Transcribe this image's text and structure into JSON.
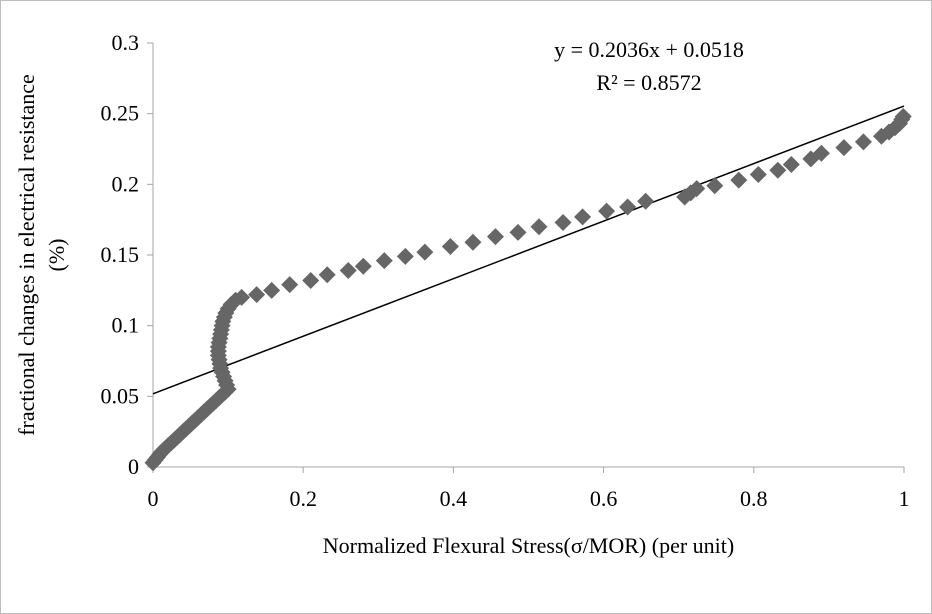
{
  "chart_data": {
    "type": "scatter",
    "title": "",
    "xlabel": "Normalized Flexural Stress(σ/MOR) (per unit)",
    "ylabel_lines": [
      "fractional changes in electrical resistance",
      "(%)"
    ],
    "xlim": [
      0,
      1
    ],
    "ylim": [
      0,
      0.3
    ],
    "x_ticks": [
      0,
      0.2,
      0.4,
      0.6,
      0.8,
      1
    ],
    "x_tick_labels": [
      "0",
      "0.2",
      "0.4",
      "0.6",
      "0.8",
      "1"
    ],
    "y_ticks": [
      0,
      0.05,
      0.1,
      0.15,
      0.2,
      0.25,
      0.3
    ],
    "y_tick_labels": [
      "0",
      "0.05",
      "0.1",
      "0.15",
      "0.2",
      "0.25",
      "0.3"
    ],
    "grid": false,
    "legend": "none",
    "marker": "diamond",
    "marker_color": "#666666",
    "trendline": {
      "type": "linear",
      "slope": 0.2036,
      "intercept": 0.0518,
      "color": "#000000",
      "equation_text": "y = 0.2036x + 0.0518",
      "r2_text": "R² = 0.8572"
    },
    "points": [
      [
        0.0,
        0.003
      ],
      [
        0.003,
        0.005
      ],
      [
        0.006,
        0.007
      ],
      [
        0.009,
        0.009
      ],
      [
        0.012,
        0.011
      ],
      [
        0.016,
        0.013
      ],
      [
        0.02,
        0.015
      ],
      [
        0.024,
        0.017
      ],
      [
        0.028,
        0.019
      ],
      [
        0.032,
        0.021
      ],
      [
        0.036,
        0.023
      ],
      [
        0.04,
        0.025
      ],
      [
        0.044,
        0.027
      ],
      [
        0.048,
        0.029
      ],
      [
        0.052,
        0.031
      ],
      [
        0.056,
        0.033
      ],
      [
        0.06,
        0.035
      ],
      [
        0.064,
        0.037
      ],
      [
        0.068,
        0.039
      ],
      [
        0.072,
        0.041
      ],
      [
        0.076,
        0.043
      ],
      [
        0.08,
        0.045
      ],
      [
        0.084,
        0.047
      ],
      [
        0.088,
        0.049
      ],
      [
        0.092,
        0.051
      ],
      [
        0.096,
        0.053
      ],
      [
        0.1,
        0.055
      ],
      [
        0.098,
        0.058
      ],
      [
        0.096,
        0.061
      ],
      [
        0.094,
        0.064
      ],
      [
        0.092,
        0.067
      ],
      [
        0.09,
        0.07
      ],
      [
        0.089,
        0.073
      ],
      [
        0.088,
        0.076
      ],
      [
        0.087,
        0.079
      ],
      [
        0.087,
        0.082
      ],
      [
        0.087,
        0.085
      ],
      [
        0.088,
        0.088
      ],
      [
        0.089,
        0.091
      ],
      [
        0.09,
        0.094
      ],
      [
        0.091,
        0.097
      ],
      [
        0.092,
        0.1
      ],
      [
        0.093,
        0.103
      ],
      [
        0.095,
        0.106
      ],
      [
        0.097,
        0.109
      ],
      [
        0.1,
        0.112
      ],
      [
        0.104,
        0.115
      ],
      [
        0.11,
        0.118
      ],
      [
        0.118,
        0.12
      ],
      [
        0.138,
        0.122
      ],
      [
        0.158,
        0.125
      ],
      [
        0.182,
        0.129
      ],
      [
        0.21,
        0.132
      ],
      [
        0.232,
        0.136
      ],
      [
        0.26,
        0.139
      ],
      [
        0.28,
        0.142
      ],
      [
        0.308,
        0.146
      ],
      [
        0.336,
        0.149
      ],
      [
        0.362,
        0.152
      ],
      [
        0.396,
        0.156
      ],
      [
        0.426,
        0.159
      ],
      [
        0.456,
        0.163
      ],
      [
        0.486,
        0.166
      ],
      [
        0.514,
        0.17
      ],
      [
        0.546,
        0.173
      ],
      [
        0.572,
        0.177
      ],
      [
        0.604,
        0.181
      ],
      [
        0.632,
        0.184
      ],
      [
        0.656,
        0.188
      ],
      [
        0.708,
        0.191
      ],
      [
        0.716,
        0.194
      ],
      [
        0.724,
        0.197
      ],
      [
        0.748,
        0.199
      ],
      [
        0.78,
        0.203
      ],
      [
        0.806,
        0.207
      ],
      [
        0.832,
        0.21
      ],
      [
        0.85,
        0.214
      ],
      [
        0.876,
        0.218
      ],
      [
        0.89,
        0.222
      ],
      [
        0.92,
        0.226
      ],
      [
        0.946,
        0.23
      ],
      [
        0.97,
        0.234
      ],
      [
        0.98,
        0.237
      ],
      [
        0.988,
        0.24
      ],
      [
        0.994,
        0.243
      ],
      [
        0.997,
        0.246
      ],
      [
        0.999,
        0.248
      ]
    ]
  }
}
